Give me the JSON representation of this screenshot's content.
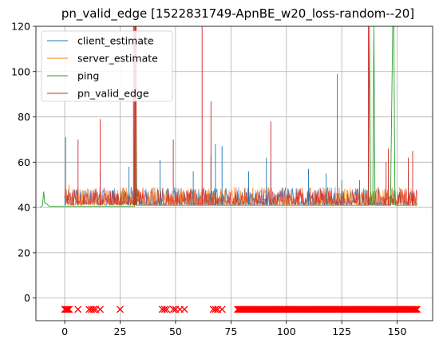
{
  "chart_data": {
    "type": "line",
    "title": "pn_valid_edge [1522831749-ApnBE_w20_loss-random--20]",
    "xlabel": "",
    "ylabel": "",
    "xlim": [
      -13,
      166
    ],
    "ylim": [
      -10,
      120
    ],
    "x_ticks": [
      0,
      25,
      50,
      75,
      100,
      125,
      150
    ],
    "y_ticks": [
      0,
      20,
      40,
      60,
      80,
      100,
      120
    ],
    "grid": true,
    "legend_position": "top-left",
    "series": [
      {
        "name": "client_estimate",
        "color": "#1f77b4",
        "x": [
          0.2,
          0.4,
          0.6,
          16,
          29,
          43,
          58,
          66,
          68,
          71,
          83,
          91,
          93,
          110,
          118,
          123,
          125,
          133,
          137,
          155
        ],
        "y": [
          41,
          71,
          41,
          56,
          58,
          61,
          56,
          63,
          68,
          67,
          56,
          62,
          60,
          57,
          55,
          99,
          52,
          52,
          55,
          56
        ]
      },
      {
        "name": "server_estimate",
        "color": "#ff7f0e",
        "x": [
          0.3,
          0.5,
          2,
          6,
          20,
          40,
          60,
          80,
          100,
          120,
          140,
          159
        ],
        "y": [
          41,
          52,
          50,
          47,
          45,
          44,
          44,
          44,
          44,
          43,
          43,
          42
        ]
      },
      {
        "name": "ping",
        "color": "#2ca02c",
        "x": [
          -11,
          -10,
          -9.5,
          -9,
          -8,
          -7,
          -5,
          -2,
          0,
          31.5,
          32,
          32.5,
          71,
          137,
          137.5,
          138,
          139,
          139.5,
          140,
          147,
          148,
          148.5,
          149,
          159
        ],
        "y": [
          40,
          41,
          47,
          42,
          41.5,
          40.5,
          40.5,
          40.5,
          40.5,
          40.5,
          120,
          41,
          41,
          41,
          120,
          41,
          41,
          120,
          41,
          41,
          120,
          120,
          41,
          41
        ]
      },
      {
        "name": "pn_valid_edge",
        "color": "#d62728",
        "x": [
          0.8,
          6,
          16,
          31,
          31.4,
          31.8,
          32.2,
          49,
          62,
          62.5,
          66,
          93,
          137,
          137.5,
          145,
          146,
          155,
          157
        ],
        "y": [
          41,
          70,
          79,
          120,
          120,
          120,
          120,
          70,
          120,
          41,
          87,
          78,
          120,
          41,
          60,
          66,
          62,
          65
        ]
      }
    ],
    "dense_noise_band": {
      "x_range": [
        0,
        159
      ],
      "y_range": [
        40,
        48
      ],
      "series": [
        "client_estimate",
        "server_estimate",
        "pn_valid_edge"
      ]
    },
    "loss_markers": {
      "color": "#ff0000",
      "y": -5,
      "x": [
        0,
        0.5,
        1,
        1.5,
        2,
        6,
        11,
        12,
        13,
        14,
        16,
        25,
        44,
        45,
        46,
        49,
        50,
        52,
        54,
        67,
        68,
        69,
        71
      ],
      "dense_range": [
        78,
        159
      ]
    }
  }
}
